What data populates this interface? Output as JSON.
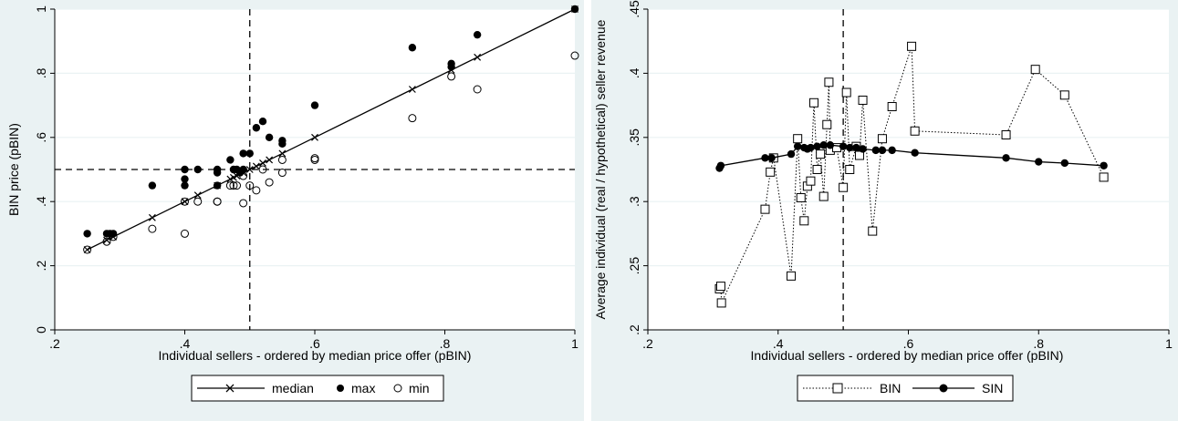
{
  "chart_data": [
    {
      "type": "scatter",
      "xlabel": "Individual sellers - ordered by median price offer (pBIN)",
      "ylabel": "BIN price (pBIN)",
      "xlim": [
        0.2,
        1.0
      ],
      "ylim": [
        0,
        1.0
      ],
      "xticks": [
        0.2,
        0.4,
        0.6,
        0.8,
        1.0
      ],
      "xtick_labels": [
        ".2",
        ".4",
        ".6",
        ".8",
        "1"
      ],
      "yticks": [
        0,
        0.2,
        0.4,
        0.6,
        0.8,
        1.0
      ],
      "ytick_labels": [
        "0",
        ".2",
        ".4",
        ".6",
        ".8",
        "1"
      ],
      "grid": true,
      "legend_position": "bottom",
      "reference_lines": {
        "x": 0.5,
        "y": 0.5
      },
      "series": [
        {
          "name": "median",
          "marker": "x",
          "line": true,
          "points": [
            [
              0.25,
              0.25
            ],
            [
              0.28,
              0.28
            ],
            [
              0.29,
              0.29
            ],
            [
              0.35,
              0.35
            ],
            [
              0.4,
              0.4
            ],
            [
              0.42,
              0.42
            ],
            [
              0.45,
              0.45
            ],
            [
              0.47,
              0.47
            ],
            [
              0.475,
              0.475
            ],
            [
              0.48,
              0.48
            ],
            [
              0.49,
              0.49
            ],
            [
              0.5,
              0.5
            ],
            [
              0.51,
              0.51
            ],
            [
              0.52,
              0.52
            ],
            [
              0.53,
              0.53
            ],
            [
              0.55,
              0.55
            ],
            [
              0.6,
              0.6
            ],
            [
              0.75,
              0.75
            ],
            [
              0.81,
              0.81
            ],
            [
              0.85,
              0.85
            ],
            [
              1.0,
              1.0
            ]
          ]
        },
        {
          "name": "max",
          "marker": "filled-circle",
          "line": false,
          "points": [
            [
              0.25,
              0.3
            ],
            [
              0.28,
              0.3
            ],
            [
              0.285,
              0.3
            ],
            [
              0.29,
              0.3
            ],
            [
              0.35,
              0.45
            ],
            [
              0.4,
              0.45
            ],
            [
              0.4,
              0.47
            ],
            [
              0.4,
              0.5
            ],
            [
              0.42,
              0.5
            ],
            [
              0.45,
              0.45
            ],
            [
              0.45,
              0.49
            ],
            [
              0.45,
              0.5
            ],
            [
              0.47,
              0.53
            ],
            [
              0.475,
              0.5
            ],
            [
              0.48,
              0.5
            ],
            [
              0.485,
              0.49
            ],
            [
              0.49,
              0.5
            ],
            [
              0.49,
              0.55
            ],
            [
              0.5,
              0.55
            ],
            [
              0.51,
              0.63
            ],
            [
              0.52,
              0.65
            ],
            [
              0.53,
              0.6
            ],
            [
              0.55,
              0.58
            ],
            [
              0.55,
              0.59
            ],
            [
              0.6,
              0.7
            ],
            [
              0.75,
              0.88
            ],
            [
              0.81,
              0.82
            ],
            [
              0.81,
              0.83
            ],
            [
              0.85,
              0.92
            ],
            [
              1.0,
              1.0
            ]
          ]
        },
        {
          "name": "min",
          "marker": "hollow-circle",
          "line": false,
          "points": [
            [
              0.25,
              0.25
            ],
            [
              0.28,
              0.275
            ],
            [
              0.29,
              0.29
            ],
            [
              0.35,
              0.315
            ],
            [
              0.4,
              0.3
            ],
            [
              0.4,
              0.4
            ],
            [
              0.42,
              0.4
            ],
            [
              0.45,
              0.4
            ],
            [
              0.45,
              0.4
            ],
            [
              0.47,
              0.45
            ],
            [
              0.475,
              0.45
            ],
            [
              0.48,
              0.45
            ],
            [
              0.49,
              0.395
            ],
            [
              0.49,
              0.48
            ],
            [
              0.5,
              0.45
            ],
            [
              0.51,
              0.435
            ],
            [
              0.52,
              0.5
            ],
            [
              0.53,
              0.46
            ],
            [
              0.55,
              0.49
            ],
            [
              0.55,
              0.53
            ],
            [
              0.6,
              0.53
            ],
            [
              0.6,
              0.535
            ],
            [
              0.75,
              0.66
            ],
            [
              0.81,
              0.79
            ],
            [
              0.85,
              0.75
            ],
            [
              1.0,
              0.855
            ]
          ]
        }
      ]
    },
    {
      "type": "line",
      "xlabel": "Individual sellers - ordered by median price offer (pBIN)",
      "ylabel": "Average individual (real / hypothetical) seller revenue",
      "xlim": [
        0.2,
        1.0
      ],
      "ylim": [
        0.2,
        0.45
      ],
      "xticks": [
        0.2,
        0.4,
        0.6,
        0.8,
        1.0
      ],
      "xtick_labels": [
        ".2",
        ".4",
        ".6",
        ".8",
        "1"
      ],
      "yticks": [
        0.2,
        0.25,
        0.3,
        0.35,
        0.4,
        0.45
      ],
      "ytick_labels": [
        ".2",
        ".25",
        ".3",
        ".35",
        ".4",
        ".45"
      ],
      "grid": true,
      "legend_position": "bottom",
      "reference_lines": {
        "x": 0.5
      },
      "series": [
        {
          "name": "BIN",
          "marker": "hollow-square",
          "line": "dotted",
          "points": [
            [
              0.31,
              0.232
            ],
            [
              0.312,
              0.234
            ],
            [
              0.313,
              0.221
            ],
            [
              0.38,
              0.294
            ],
            [
              0.388,
              0.323
            ],
            [
              0.393,
              0.334
            ],
            [
              0.42,
              0.242
            ],
            [
              0.43,
              0.349
            ],
            [
              0.435,
              0.303
            ],
            [
              0.44,
              0.285
            ],
            [
              0.445,
              0.312
            ],
            [
              0.45,
              0.316
            ],
            [
              0.455,
              0.377
            ],
            [
              0.46,
              0.325
            ],
            [
              0.465,
              0.337
            ],
            [
              0.47,
              0.304
            ],
            [
              0.475,
              0.36
            ],
            [
              0.478,
              0.393
            ],
            [
              0.48,
              0.34
            ],
            [
              0.49,
              0.342
            ],
            [
              0.5,
              0.311
            ],
            [
              0.505,
              0.385
            ],
            [
              0.51,
              0.325
            ],
            [
              0.52,
              0.343
            ],
            [
              0.525,
              0.336
            ],
            [
              0.53,
              0.379
            ],
            [
              0.545,
              0.277
            ],
            [
              0.56,
              0.349
            ],
            [
              0.575,
              0.374
            ],
            [
              0.605,
              0.421
            ],
            [
              0.61,
              0.355
            ],
            [
              0.75,
              0.352
            ],
            [
              0.795,
              0.403
            ],
            [
              0.84,
              0.383
            ],
            [
              0.9,
              0.319
            ]
          ]
        },
        {
          "name": "SIN",
          "marker": "filled-circle",
          "line": "solid",
          "points": [
            [
              0.31,
              0.326
            ],
            [
              0.312,
              0.328
            ],
            [
              0.38,
              0.334
            ],
            [
              0.39,
              0.334
            ],
            [
              0.42,
              0.337
            ],
            [
              0.43,
              0.343
            ],
            [
              0.44,
              0.342
            ],
            [
              0.445,
              0.341
            ],
            [
              0.45,
              0.342
            ],
            [
              0.46,
              0.343
            ],
            [
              0.47,
              0.344
            ],
            [
              0.48,
              0.344
            ],
            [
              0.5,
              0.343
            ],
            [
              0.51,
              0.342
            ],
            [
              0.52,
              0.342
            ],
            [
              0.53,
              0.341
            ],
            [
              0.55,
              0.34
            ],
            [
              0.56,
              0.34
            ],
            [
              0.575,
              0.34
            ],
            [
              0.61,
              0.338
            ],
            [
              0.75,
              0.334
            ],
            [
              0.8,
              0.331
            ],
            [
              0.84,
              0.33
            ],
            [
              0.9,
              0.328
            ]
          ]
        }
      ]
    }
  ]
}
